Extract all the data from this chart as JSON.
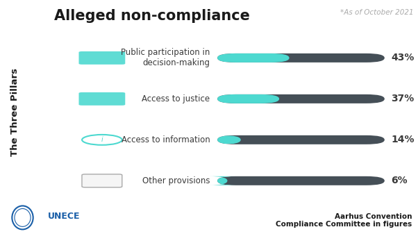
{
  "title": "Alleged non-compliance",
  "subtitle": "*As of October 2021",
  "ylabel_rotated": "The Three Pillars",
  "categories": [
    "Public participation in\ndecision-making",
    "Access to justice",
    "Access to information",
    "Other provisions"
  ],
  "values": [
    43,
    37,
    14,
    6
  ],
  "max_value": 100,
  "bar_bg_color": "#454f57",
  "bar_fg_color": "#4dd9d0",
  "text_color": "#3a3a3a",
  "title_color": "#1a1a1a",
  "subtitle_color": "#aaaaaa",
  "label_color": "#3a3a3a",
  "footer_bg_color": "#4dd9d0",
  "footer_text": "Aarhus Convention\nCompliance Committee in figures",
  "footer_text_color": "#1a1a1a",
  "bg_color": "#ffffff",
  "bar_height": 0.22,
  "unece_color": "#1a5fa8"
}
